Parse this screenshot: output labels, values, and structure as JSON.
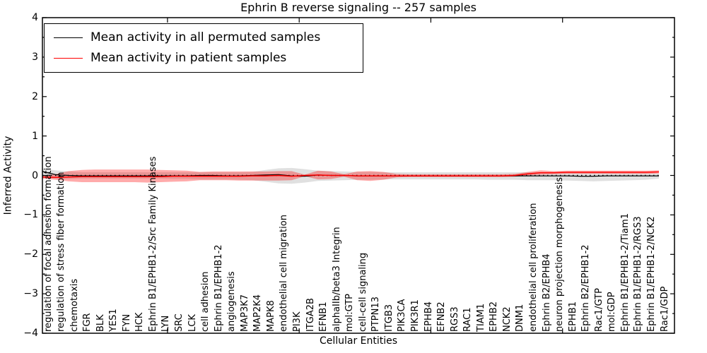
{
  "chart_data": {
    "type": "line",
    "title": "Ephrin B reverse signaling -- 257 samples",
    "xlabel": "Cellular Entities",
    "ylabel": "Inferred Activity",
    "ylim": [
      -4,
      4
    ],
    "yticks": [
      4,
      3,
      2,
      1,
      0,
      -1,
      -2,
      -3,
      -4
    ],
    "xticks": [
      10,
      20,
      30,
      40
    ],
    "grid": false,
    "legend_position": "upper left",
    "zero_reference_line": true,
    "categories": [
      "regulation of focal adhesion formation",
      "regulation of stress fiber formation",
      "chemotaxis",
      "FGR",
      "BLK",
      "YES1",
      "FYN",
      "HCK",
      "Ephrin B1/EPHB1-2/Src Family Kinases",
      "LYN",
      "SRC",
      "LCK",
      "cell adhesion",
      "Ephrin B1/EPHB1-2",
      "angiogenesis",
      "MAP3K7",
      "MAP2K4",
      "MAPK8",
      "endothelial cell migration",
      "PI3K",
      "ITGA2B",
      "EFNB1",
      "alphaIIb/beta3 Integrin",
      "mol:GTP",
      "cell-cell signaling",
      "PTPN13",
      "ITGB3",
      "PIK3CA",
      "PIK3R1",
      "EPHB4",
      "EFNB2",
      "RGS3",
      "RAC1",
      "TIAM1",
      "EPHB2",
      "NCK2",
      "DNM1",
      "endothelial cell proliferation",
      "Ephrin B2/EPHB4",
      "neuron projection morphogenesis",
      "EPHB1",
      "Ephrin B2/EPHB1-2",
      "Rac1/GTP",
      "mol:GDP",
      "Ephrin B1/EPHB1-2/Tiam1",
      "Ephrin B1/EPHB1-2/RGS3",
      "Ephrin B1/EPHB1-2/NCK2",
      "Rac1/GDP"
    ],
    "series": [
      {
        "name": "Mean activity in all permuted samples",
        "color": "#000000",
        "band_color": "#000000",
        "values": [
          0.1,
          0.02,
          0.0,
          -0.01,
          -0.01,
          -0.01,
          -0.01,
          -0.01,
          -0.01,
          -0.01,
          -0.01,
          -0.01,
          0.0,
          0.0,
          -0.01,
          -0.01,
          0.0,
          0.01,
          0.02,
          -0.01,
          -0.02,
          0.01,
          0.0,
          0.0,
          -0.01,
          -0.01,
          -0.01,
          -0.01,
          -0.01,
          -0.01,
          -0.01,
          -0.01,
          -0.01,
          -0.01,
          -0.01,
          -0.01,
          -0.01,
          -0.01,
          -0.01,
          -0.01,
          -0.01,
          -0.02,
          -0.02,
          -0.01,
          -0.01,
          -0.01,
          -0.01,
          -0.01
        ],
        "band_lower": [
          -0.06,
          -0.09,
          -0.09,
          -0.08,
          -0.08,
          -0.08,
          -0.08,
          -0.08,
          -0.08,
          -0.08,
          -0.09,
          -0.09,
          -0.1,
          -0.1,
          -0.1,
          -0.11,
          -0.12,
          -0.16,
          -0.2,
          -0.21,
          -0.18,
          -0.14,
          -0.13,
          -0.12,
          -0.11,
          -0.11,
          -0.1,
          -0.1,
          -0.1,
          -0.1,
          -0.1,
          -0.1,
          -0.1,
          -0.1,
          -0.11,
          -0.11,
          -0.11,
          -0.12,
          -0.12,
          -0.12,
          -0.13,
          -0.14,
          -0.15,
          -0.14,
          -0.13,
          -0.12,
          -0.11,
          -0.08
        ],
        "band_upper": [
          0.17,
          0.13,
          0.1,
          0.08,
          0.08,
          0.08,
          0.08,
          0.08,
          0.08,
          0.08,
          0.08,
          0.08,
          0.08,
          0.08,
          0.08,
          0.08,
          0.09,
          0.14,
          0.18,
          0.19,
          0.16,
          0.12,
          0.11,
          0.1,
          0.09,
          0.09,
          0.08,
          0.08,
          0.08,
          0.08,
          0.08,
          0.08,
          0.08,
          0.08,
          0.08,
          0.08,
          0.08,
          0.08,
          0.08,
          0.08,
          0.08,
          0.07,
          0.07,
          0.07,
          0.06,
          0.06,
          0.06,
          0.05
        ]
      },
      {
        "name": "Mean activity in patient samples",
        "color": "#ff0000",
        "band_color": "#ff0000",
        "values": [
          -0.04,
          -0.05,
          -0.04,
          -0.03,
          -0.03,
          -0.03,
          -0.03,
          -0.03,
          -0.03,
          -0.03,
          -0.02,
          -0.02,
          -0.02,
          -0.02,
          -0.02,
          -0.02,
          -0.01,
          -0.01,
          0.0,
          -0.02,
          0.0,
          0.01,
          0.0,
          0.0,
          -0.01,
          -0.01,
          -0.01,
          -0.01,
          -0.01,
          -0.01,
          -0.01,
          -0.01,
          -0.01,
          -0.01,
          -0.01,
          -0.01,
          0.0,
          0.04,
          0.07,
          0.07,
          0.08,
          0.08,
          0.08,
          0.08,
          0.08,
          0.08,
          0.08,
          0.09
        ],
        "band_lower": [
          -0.08,
          -0.11,
          -0.15,
          -0.17,
          -0.17,
          -0.17,
          -0.17,
          -0.17,
          -0.18,
          -0.17,
          -0.16,
          -0.15,
          -0.12,
          -0.12,
          -0.12,
          -0.13,
          -0.13,
          -0.13,
          -0.13,
          -0.12,
          -0.02,
          -0.1,
          -0.09,
          -0.03,
          -0.12,
          -0.14,
          -0.11,
          -0.05,
          -0.04,
          -0.04,
          -0.04,
          -0.04,
          -0.04,
          -0.04,
          -0.04,
          -0.04,
          -0.03,
          0.0,
          0.02,
          0.03,
          0.04,
          0.04,
          0.04,
          0.04,
          0.04,
          0.04,
          0.04,
          0.05
        ],
        "band_upper": [
          -0.01,
          0.03,
          0.11,
          0.14,
          0.15,
          0.15,
          0.15,
          0.15,
          0.15,
          0.14,
          0.13,
          0.12,
          0.09,
          0.1,
          0.1,
          0.1,
          0.1,
          0.1,
          0.11,
          0.11,
          0.02,
          0.12,
          0.1,
          0.03,
          0.1,
          0.11,
          0.09,
          0.04,
          0.03,
          0.03,
          0.03,
          0.03,
          0.03,
          0.03,
          0.03,
          0.03,
          0.04,
          0.09,
          0.13,
          0.11,
          0.12,
          0.12,
          0.12,
          0.12,
          0.12,
          0.12,
          0.12,
          0.13
        ]
      }
    ]
  }
}
